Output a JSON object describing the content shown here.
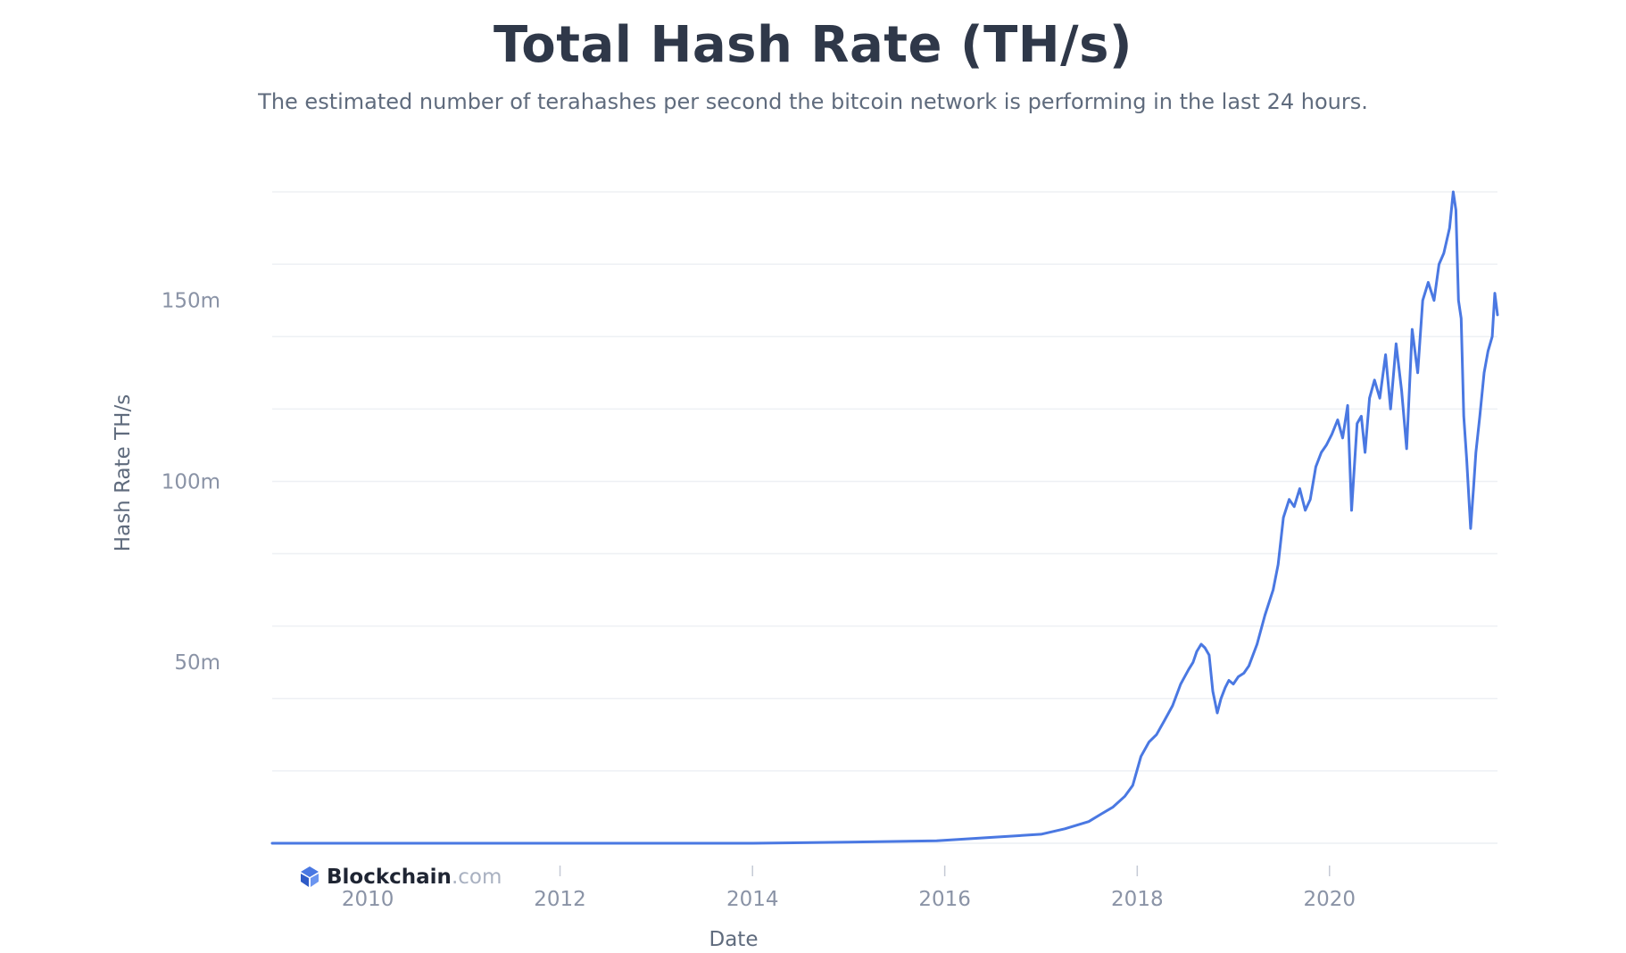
{
  "chart_data": {
    "type": "line",
    "title": "Total Hash Rate (TH/s)",
    "subtitle": "The estimated number of terahashes per second the bitcoin network is performing in the last 24 hours.",
    "xlabel": "Date",
    "ylabel": "Hash Rate TH/s",
    "x_ticks": [
      "2010",
      "2012",
      "2014",
      "2016",
      "2018",
      "2020"
    ],
    "y_ticks": [
      "50m",
      "100m",
      "150m"
    ],
    "y_tick_values": [
      50000000,
      100000000,
      150000000
    ],
    "xlim": [
      "2009-01-03",
      "2021-09-30"
    ],
    "ylim": [
      0,
      180000000
    ],
    "grid": true,
    "line_color": "#4a78e2",
    "brand": {
      "name": "Blockchain",
      "suffix": ".com"
    },
    "series": [
      {
        "x": [
          "2009-01-03",
          "2012-01-01",
          "2014-01-01",
          "2015-01-01",
          "2015-12-01",
          "2016-06-01",
          "2017-01-01",
          "2017-04-01",
          "2017-07-01",
          "2017-08-15",
          "2017-10-01",
          "2017-11-15",
          "2017-12-15",
          "2018-01-15",
          "2018-02-15",
          "2018-03-15",
          "2018-04-15",
          "2018-05-15",
          "2018-06-15",
          "2018-07-15",
          "2018-08-01",
          "2018-08-15",
          "2018-09-01",
          "2018-09-15",
          "2018-10-01",
          "2018-10-15",
          "2018-11-01",
          "2018-11-15",
          "2018-12-01",
          "2018-12-15",
          "2019-01-01",
          "2019-01-20",
          "2019-02-10",
          "2019-03-01",
          "2019-04-01",
          "2019-05-01",
          "2019-06-01",
          "2019-06-20",
          "2019-07-10",
          "2019-08-01",
          "2019-08-20",
          "2019-09-10",
          "2019-10-01",
          "2019-10-20",
          "2019-11-10",
          "2019-12-01",
          "2019-12-20",
          "2020-01-10",
          "2020-02-01",
          "2020-02-20",
          "2020-03-10",
          "2020-03-25",
          "2020-04-15",
          "2020-05-01",
          "2020-05-15",
          "2020-06-01",
          "2020-06-20",
          "2020-07-10",
          "2020-08-01",
          "2020-08-20",
          "2020-09-10",
          "2020-10-01",
          "2020-10-20",
          "2020-11-10",
          "2020-12-01",
          "2020-12-20",
          "2021-01-10",
          "2021-02-01",
          "2021-02-20",
          "2021-03-10",
          "2021-04-01",
          "2021-04-15",
          "2021-04-25",
          "2021-05-05",
          "2021-05-15",
          "2021-05-25",
          "2021-06-05",
          "2021-06-20",
          "2021-07-01",
          "2021-07-10",
          "2021-07-25",
          "2021-08-10",
          "2021-08-25",
          "2021-09-10",
          "2021-09-20",
          "2021-09-30"
        ],
        "values": [
          0,
          0,
          10000,
          300000,
          700000,
          1500000,
          2500000,
          4000000,
          6000000,
          8000000,
          10000000,
          13000000,
          16000000,
          24000000,
          28000000,
          30000000,
          34000000,
          38000000,
          44000000,
          48000000,
          50000000,
          53000000,
          55000000,
          54000000,
          52000000,
          42000000,
          36000000,
          40000000,
          43000000,
          45000000,
          44000000,
          46000000,
          47000000,
          49000000,
          55000000,
          63000000,
          70000000,
          77000000,
          90000000,
          95000000,
          93000000,
          98000000,
          92000000,
          95000000,
          104000000,
          108000000,
          110000000,
          113000000,
          117000000,
          112000000,
          121000000,
          92000000,
          116000000,
          118000000,
          108000000,
          123000000,
          128000000,
          123000000,
          135000000,
          120000000,
          138000000,
          125000000,
          109000000,
          142000000,
          130000000,
          150000000,
          155000000,
          150000000,
          160000000,
          163000000,
          170000000,
          180000000,
          175000000,
          150000000,
          145000000,
          118000000,
          106000000,
          87000000,
          98000000,
          108000000,
          118000000,
          130000000,
          136000000,
          140000000,
          152000000,
          146000000
        ]
      }
    ]
  }
}
